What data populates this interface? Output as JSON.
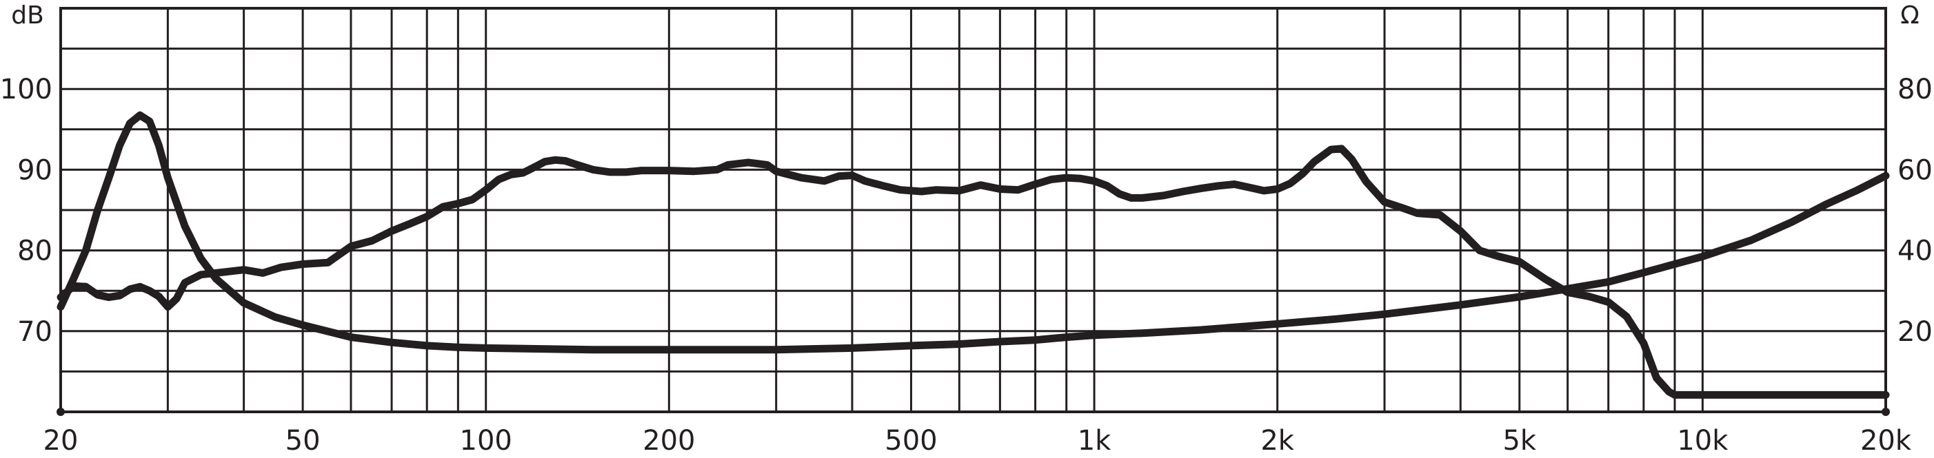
{
  "chart_data": {
    "type": "line",
    "title": "",
    "x_scale": "log",
    "xlim": [
      20,
      20000
    ],
    "ylim_left": [
      60,
      110
    ],
    "ylim_right": [
      0,
      100
    ],
    "left_unit": "dB",
    "right_unit": "Ω",
    "x_ticks": [
      {
        "value": 20,
        "label": "20"
      },
      {
        "value": 50,
        "label": "50"
      },
      {
        "value": 100,
        "label": "100"
      },
      {
        "value": 200,
        "label": "200"
      },
      {
        "value": 500,
        "label": "500"
      },
      {
        "value": 1000,
        "label": "1k"
      },
      {
        "value": 2000,
        "label": "2k"
      },
      {
        "value": 5000,
        "label": "5k"
      },
      {
        "value": 10000,
        "label": "10k"
      },
      {
        "value": 20000,
        "label": "20k"
      }
    ],
    "y_left_ticks": [
      {
        "value": 70,
        "label": "70"
      },
      {
        "value": 80,
        "label": "80"
      },
      {
        "value": 90,
        "label": "90"
      },
      {
        "value": 100,
        "label": "100"
      }
    ],
    "y_right_ticks": [
      {
        "value": 20,
        "label": "20"
      },
      {
        "value": 40,
        "label": "40"
      },
      {
        "value": 60,
        "label": "60"
      },
      {
        "value": 80,
        "label": "80"
      }
    ],
    "grid": true,
    "series": [
      {
        "axis": "left",
        "color": "#231f20",
        "points": [
          [
            20,
            74.2
          ],
          [
            21,
            75.6
          ],
          [
            22,
            75.5
          ],
          [
            23,
            74.5
          ],
          [
            24,
            74.2
          ],
          [
            25,
            74.4
          ],
          [
            26,
            75.2
          ],
          [
            27,
            75.5
          ],
          [
            28,
            75.0
          ],
          [
            29,
            74.3
          ],
          [
            30,
            73.0
          ],
          [
            31,
            74.0
          ],
          [
            32,
            76.0
          ],
          [
            34,
            77.0
          ],
          [
            37,
            77.3
          ],
          [
            40,
            77.6
          ],
          [
            43,
            77.2
          ],
          [
            46,
            77.9
          ],
          [
            50,
            78.3
          ],
          [
            55,
            78.5
          ],
          [
            60,
            80.5
          ],
          [
            65,
            81.2
          ],
          [
            70,
            82.4
          ],
          [
            75,
            83.3
          ],
          [
            80,
            84.2
          ],
          [
            85,
            85.4
          ],
          [
            90,
            85.8
          ],
          [
            95,
            86.3
          ],
          [
            100,
            87.5
          ],
          [
            105,
            88.8
          ],
          [
            110,
            89.4
          ],
          [
            115,
            89.6
          ],
          [
            120,
            90.3
          ],
          [
            125,
            91.0
          ],
          [
            130,
            91.2
          ],
          [
            135,
            91.1
          ],
          [
            140,
            90.7
          ],
          [
            150,
            90.0
          ],
          [
            160,
            89.7
          ],
          [
            170,
            89.7
          ],
          [
            180,
            89.9
          ],
          [
            200,
            89.9
          ],
          [
            220,
            89.8
          ],
          [
            240,
            90.0
          ],
          [
            250,
            90.6
          ],
          [
            270,
            90.9
          ],
          [
            290,
            90.6
          ],
          [
            300,
            89.8
          ],
          [
            330,
            89.0
          ],
          [
            360,
            88.6
          ],
          [
            380,
            89.2
          ],
          [
            400,
            89.3
          ],
          [
            420,
            88.6
          ],
          [
            450,
            88.0
          ],
          [
            480,
            87.5
          ],
          [
            520,
            87.3
          ],
          [
            550,
            87.5
          ],
          [
            600,
            87.4
          ],
          [
            650,
            88.1
          ],
          [
            700,
            87.6
          ],
          [
            750,
            87.5
          ],
          [
            800,
            88.2
          ],
          [
            850,
            88.8
          ],
          [
            900,
            89.0
          ],
          [
            950,
            88.9
          ],
          [
            1000,
            88.6
          ],
          [
            1050,
            88.0
          ],
          [
            1100,
            87.0
          ],
          [
            1150,
            86.5
          ],
          [
            1200,
            86.5
          ],
          [
            1300,
            86.8
          ],
          [
            1400,
            87.3
          ],
          [
            1500,
            87.7
          ],
          [
            1600,
            88.0
          ],
          [
            1700,
            88.2
          ],
          [
            1800,
            87.8
          ],
          [
            1900,
            87.4
          ],
          [
            2000,
            87.6
          ],
          [
            2100,
            88.3
          ],
          [
            2200,
            89.5
          ],
          [
            2300,
            91.0
          ],
          [
            2450,
            92.5
          ],
          [
            2550,
            92.6
          ],
          [
            2650,
            91.3
          ],
          [
            2800,
            88.5
          ],
          [
            3000,
            86.0
          ],
          [
            3200,
            85.3
          ],
          [
            3400,
            84.6
          ],
          [
            3700,
            84.4
          ],
          [
            4000,
            82.4
          ],
          [
            4300,
            80.0
          ],
          [
            4600,
            79.3
          ],
          [
            5000,
            78.6
          ],
          [
            5500,
            76.5
          ],
          [
            6000,
            74.8
          ],
          [
            6500,
            74.3
          ],
          [
            7000,
            73.6
          ],
          [
            7500,
            71.8
          ],
          [
            8000,
            68.5
          ],
          [
            8400,
            64.2
          ],
          [
            8800,
            62.5
          ],
          [
            9000,
            62.1
          ],
          [
            10000,
            62.1
          ],
          [
            12000,
            62.1
          ],
          [
            14000,
            62.1
          ],
          [
            16000,
            62.1
          ],
          [
            18000,
            62.1
          ],
          [
            20000,
            62.1
          ]
        ]
      },
      {
        "axis": "right",
        "color": "#231f20",
        "points": [
          [
            20,
            26.0
          ],
          [
            21,
            33.0
          ],
          [
            22,
            40.0
          ],
          [
            23,
            50.0
          ],
          [
            24,
            58.0
          ],
          [
            25,
            66.0
          ],
          [
            26,
            71.5
          ],
          [
            27,
            73.5
          ],
          [
            28,
            72.0
          ],
          [
            29,
            66.0
          ],
          [
            30,
            58.0
          ],
          [
            32,
            46.0
          ],
          [
            34,
            38.0
          ],
          [
            36,
            33.0
          ],
          [
            40,
            27.0
          ],
          [
            45,
            23.5
          ],
          [
            50,
            21.5
          ],
          [
            60,
            18.5
          ],
          [
            70,
            17.2
          ],
          [
            80,
            16.4
          ],
          [
            90,
            16.0
          ],
          [
            100,
            15.8
          ],
          [
            150,
            15.4
          ],
          [
            200,
            15.4
          ],
          [
            300,
            15.4
          ],
          [
            400,
            15.8
          ],
          [
            500,
            16.4
          ],
          [
            600,
            16.8
          ],
          [
            700,
            17.4
          ],
          [
            800,
            17.8
          ],
          [
            900,
            18.5
          ],
          [
            1000,
            19.0
          ],
          [
            1200,
            19.5
          ],
          [
            1500,
            20.3
          ],
          [
            2000,
            21.8
          ],
          [
            2500,
            23.0
          ],
          [
            3000,
            24.2
          ],
          [
            4000,
            26.5
          ],
          [
            5000,
            28.5
          ],
          [
            6000,
            30.5
          ],
          [
            7000,
            32.2
          ],
          [
            8000,
            34.5
          ],
          [
            10000,
            38.5
          ],
          [
            12000,
            42.5
          ],
          [
            14000,
            47.0
          ],
          [
            16000,
            51.5
          ],
          [
            18000,
            55.0
          ],
          [
            20000,
            58.5
          ]
        ]
      }
    ]
  }
}
